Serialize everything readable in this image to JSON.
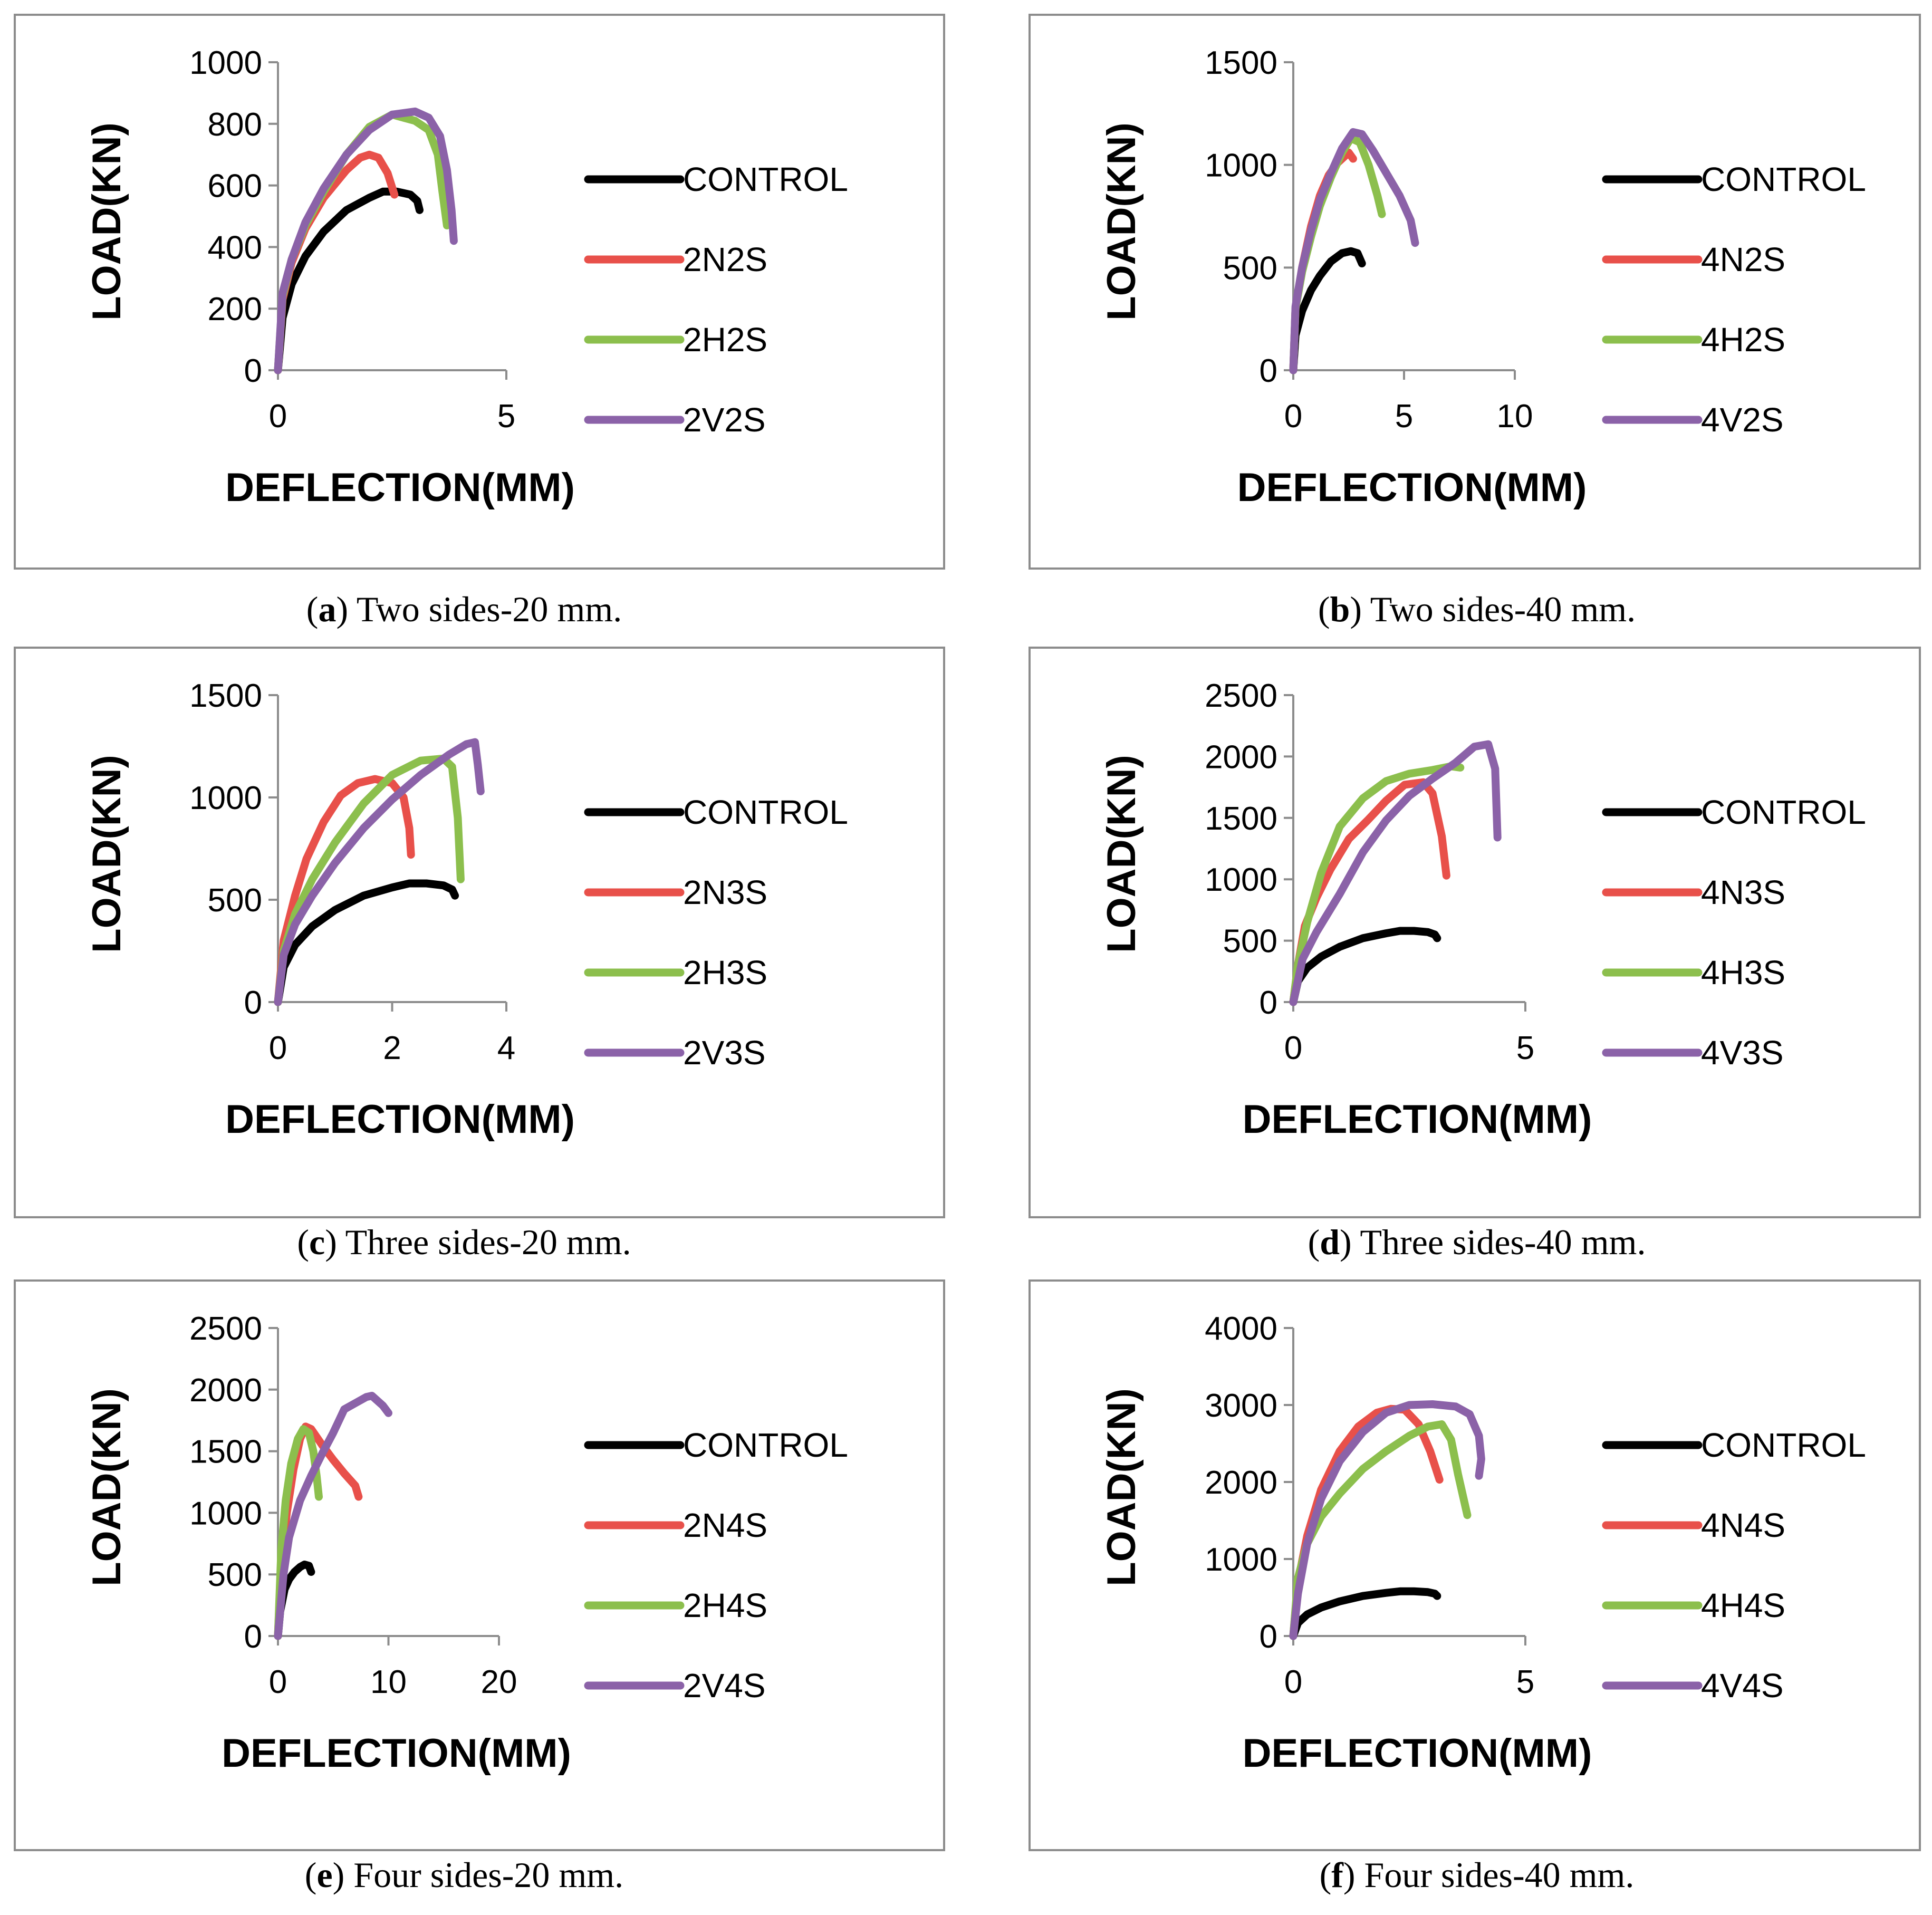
{
  "figure": {
    "x_label": "DEFLECTION(MM)",
    "y_label": "LOAD(KN)"
  },
  "colors": {
    "CONTROL": "#000000",
    "N": "#e8504a",
    "H": "#8cbf4d",
    "V": "#8b62a8"
  },
  "chart_data": [
    {
      "type": "line",
      "panel_letter": "a",
      "caption": "Two sides-20 mm.",
      "xlabel": "DEFLECTION(MM)",
      "ylabel": "LOAD(KN)",
      "xlim": [
        0,
        5
      ],
      "ylim": [
        0,
        1000
      ],
      "xticks": [
        0,
        5
      ],
      "yticks": [
        0,
        200,
        400,
        600,
        800,
        1000
      ],
      "legend_position": "right",
      "series": [
        {
          "name": "CONTROL",
          "color_key": "CONTROL",
          "x": [
            0,
            0.1,
            0.3,
            0.6,
            1.0,
            1.5,
            2.0,
            2.3,
            2.6,
            2.9,
            3.05,
            3.1
          ],
          "y": [
            0,
            170,
            280,
            370,
            450,
            520,
            560,
            580,
            580,
            570,
            550,
            520
          ]
        },
        {
          "name": "2N2S",
          "color_key": "N",
          "x": [
            0,
            0.1,
            0.3,
            0.6,
            1.0,
            1.5,
            1.8,
            2.0,
            2.2,
            2.4,
            2.55
          ],
          "y": [
            0,
            230,
            350,
            460,
            560,
            650,
            690,
            700,
            690,
            640,
            570
          ]
        },
        {
          "name": "2H2S",
          "color_key": "H",
          "x": [
            0,
            0.1,
            0.3,
            0.6,
            1.0,
            1.5,
            2.0,
            2.5,
            3.0,
            3.3,
            3.5,
            3.6,
            3.7
          ],
          "y": [
            0,
            240,
            360,
            470,
            580,
            700,
            790,
            830,
            810,
            780,
            700,
            580,
            470
          ]
        },
        {
          "name": "2V2S",
          "color_key": "V",
          "x": [
            0,
            0.1,
            0.3,
            0.6,
            1.0,
            1.5,
            2.0,
            2.5,
            3.0,
            3.3,
            3.55,
            3.7,
            3.8,
            3.85
          ],
          "y": [
            0,
            250,
            360,
            480,
            590,
            700,
            780,
            830,
            840,
            820,
            760,
            650,
            520,
            420
          ]
        }
      ]
    },
    {
      "type": "line",
      "panel_letter": "b",
      "caption": "Two sides-40 mm.",
      "xlabel": "DEFLECTION(MM)",
      "ylabel": "LOAD(KN)",
      "xlim": [
        0,
        10
      ],
      "ylim": [
        0,
        1500
      ],
      "xticks": [
        0,
        5,
        10
      ],
      "yticks": [
        0,
        500,
        1000,
        1500
      ],
      "legend_position": "right",
      "series": [
        {
          "name": "CONTROL",
          "color_key": "CONTROL",
          "x": [
            0,
            0.1,
            0.4,
            0.8,
            1.2,
            1.7,
            2.2,
            2.6,
            2.9,
            3.1
          ],
          "y": [
            0,
            170,
            290,
            390,
            460,
            530,
            570,
            580,
            570,
            520
          ]
        },
        {
          "name": "4N2S",
          "color_key": "N",
          "x": [
            0,
            0.1,
            0.4,
            0.8,
            1.2,
            1.6,
            2.0,
            2.3,
            2.5,
            2.7
          ],
          "y": [
            0,
            300,
            500,
            700,
            850,
            950,
            1010,
            1040,
            1060,
            1030
          ]
        },
        {
          "name": "4H2S",
          "color_key": "H",
          "x": [
            0,
            0.1,
            0.4,
            0.8,
            1.2,
            1.7,
            2.2,
            2.6,
            3.0,
            3.4,
            3.8,
            4.0
          ],
          "y": [
            0,
            300,
            480,
            650,
            800,
            940,
            1060,
            1130,
            1110,
            1000,
            850,
            760
          ]
        },
        {
          "name": "4V2S",
          "color_key": "V",
          "x": [
            0,
            0.1,
            0.4,
            0.8,
            1.2,
            1.7,
            2.2,
            2.7,
            3.1,
            3.6,
            4.2,
            4.8,
            5.3,
            5.5
          ],
          "y": [
            0,
            310,
            500,
            680,
            830,
            960,
            1080,
            1160,
            1150,
            1070,
            960,
            850,
            730,
            620
          ]
        }
      ]
    },
    {
      "type": "line",
      "panel_letter": "c",
      "caption": "Three sides-20 mm.",
      "xlabel": "DEFLECTION(MM)",
      "ylabel": "LOAD(KN)",
      "xlim": [
        0,
        4
      ],
      "ylim": [
        0,
        1500
      ],
      "xticks": [
        0,
        2,
        4
      ],
      "yticks": [
        0,
        500,
        1000,
        1500
      ],
      "legend_position": "right",
      "series": [
        {
          "name": "CONTROL",
          "color_key": "CONTROL",
          "x": [
            0,
            0.1,
            0.3,
            0.6,
            1.0,
            1.5,
            2.0,
            2.3,
            2.6,
            2.9,
            3.05,
            3.1
          ],
          "y": [
            0,
            170,
            280,
            370,
            450,
            520,
            560,
            580,
            580,
            570,
            550,
            520
          ]
        },
        {
          "name": "2N3S",
          "color_key": "N",
          "x": [
            0,
            0.1,
            0.3,
            0.5,
            0.8,
            1.1,
            1.4,
            1.7,
            2.0,
            2.2,
            2.3,
            2.33
          ],
          "y": [
            0,
            300,
            520,
            700,
            880,
            1010,
            1070,
            1090,
            1070,
            1000,
            850,
            720
          ]
        },
        {
          "name": "2H3S",
          "color_key": "H",
          "x": [
            0,
            0.1,
            0.3,
            0.6,
            1.0,
            1.5,
            2.0,
            2.5,
            2.9,
            3.05,
            3.15,
            3.2
          ],
          "y": [
            0,
            250,
            430,
            600,
            780,
            970,
            1110,
            1180,
            1190,
            1150,
            900,
            600
          ]
        },
        {
          "name": "2V3S",
          "color_key": "V",
          "x": [
            0,
            0.1,
            0.3,
            0.6,
            1.0,
            1.5,
            2.0,
            2.5,
            3.0,
            3.3,
            3.45,
            3.5,
            3.55
          ],
          "y": [
            0,
            230,
            380,
            520,
            680,
            850,
            990,
            1110,
            1210,
            1260,
            1270,
            1160,
            1030
          ]
        }
      ]
    },
    {
      "type": "line",
      "panel_letter": "d",
      "caption": "Three sides-40 mm.",
      "xlabel": "DEFLECTION(MM)",
      "ylabel": "LOAD(KN)",
      "xlim": [
        0,
        5
      ],
      "ylim": [
        0,
        2500
      ],
      "xticks": [
        0,
        5
      ],
      "yticks": [
        0,
        500,
        1000,
        1500,
        2000,
        2500
      ],
      "legend_position": "right",
      "series": [
        {
          "name": "CONTROL",
          "color_key": "CONTROL",
          "x": [
            0,
            0.1,
            0.3,
            0.6,
            1.0,
            1.5,
            2.0,
            2.3,
            2.6,
            2.9,
            3.05,
            3.1
          ],
          "y": [
            0,
            170,
            280,
            370,
            450,
            520,
            560,
            580,
            580,
            570,
            550,
            520
          ]
        },
        {
          "name": "4N3S",
          "color_key": "N",
          "x": [
            0,
            0.1,
            0.25,
            0.5,
            0.8,
            1.2,
            1.6,
            2.0,
            2.4,
            2.8,
            3.0,
            3.2,
            3.3
          ],
          "y": [
            0,
            300,
            620,
            850,
            1080,
            1330,
            1480,
            1640,
            1770,
            1790,
            1700,
            1350,
            1030
          ]
        },
        {
          "name": "4H3S",
          "color_key": "H",
          "x": [
            0,
            0.1,
            0.3,
            0.6,
            1.0,
            1.5,
            2.0,
            2.5,
            3.0,
            3.4,
            3.6
          ],
          "y": [
            0,
            300,
            650,
            1050,
            1430,
            1660,
            1800,
            1860,
            1890,
            1920,
            1910
          ]
        },
        {
          "name": "4V3S",
          "color_key": "V",
          "x": [
            0,
            0.2,
            0.5,
            1.0,
            1.5,
            2.0,
            2.5,
            3.0,
            3.5,
            3.9,
            4.2,
            4.35,
            4.4
          ],
          "y": [
            0,
            350,
            570,
            880,
            1220,
            1480,
            1680,
            1820,
            1950,
            2080,
            2100,
            1900,
            1340
          ]
        }
      ]
    },
    {
      "type": "line",
      "panel_letter": "e",
      "caption": "Four sides-20 mm.",
      "xlabel": "DEFLECTION(MM)",
      "ylabel": "LOAD(KN)",
      "xlim": [
        0,
        20
      ],
      "ylim": [
        0,
        2500
      ],
      "xticks": [
        0,
        10,
        20
      ],
      "yticks": [
        0,
        500,
        1000,
        1500,
        2000,
        2500
      ],
      "legend_position": "right",
      "series": [
        {
          "name": "CONTROL",
          "color_key": "CONTROL",
          "x": [
            0,
            0.2,
            0.6,
            1.0,
            1.5,
            2.0,
            2.4,
            2.8,
            3.0
          ],
          "y": [
            0,
            200,
            380,
            460,
            520,
            560,
            580,
            570,
            520
          ]
        },
        {
          "name": "2N4S",
          "color_key": "N",
          "x": [
            0,
            0.3,
            0.8,
            1.4,
            2.0,
            2.5,
            3.0,
            4.0,
            5.0,
            6.0,
            7.0,
            7.3
          ],
          "y": [
            0,
            600,
            1000,
            1350,
            1600,
            1700,
            1680,
            1550,
            1430,
            1320,
            1220,
            1130
          ]
        },
        {
          "name": "2H4S",
          "color_key": "H",
          "x": [
            0,
            0.3,
            0.7,
            1.2,
            1.8,
            2.3,
            2.8,
            3.2,
            3.5,
            3.7
          ],
          "y": [
            0,
            700,
            1100,
            1400,
            1600,
            1680,
            1650,
            1500,
            1300,
            1130
          ]
        },
        {
          "name": "2V4S",
          "color_key": "V",
          "x": [
            0,
            0.5,
            1.0,
            2.0,
            3.0,
            4.0,
            5.0,
            6.0,
            7.0,
            8.0,
            8.5,
            9.5,
            10.0
          ],
          "y": [
            0,
            500,
            800,
            1100,
            1300,
            1480,
            1650,
            1840,
            1890,
            1940,
            1950,
            1870,
            1810
          ]
        }
      ]
    },
    {
      "type": "line",
      "panel_letter": "f",
      "caption": "Four sides-40 mm.",
      "xlabel": "DEFLECTION(MM)",
      "ylabel": "LOAD(KN)",
      "xlim": [
        0,
        5
      ],
      "ylim": [
        0,
        4000
      ],
      "xticks": [
        0,
        5
      ],
      "yticks": [
        0,
        1000,
        2000,
        3000,
        4000
      ],
      "legend_position": "right",
      "series": [
        {
          "name": "CONTROL",
          "color_key": "CONTROL",
          "x": [
            0,
            0.1,
            0.3,
            0.6,
            1.0,
            1.5,
            2.0,
            2.3,
            2.6,
            2.9,
            3.05,
            3.1
          ],
          "y": [
            0,
            170,
            280,
            370,
            450,
            520,
            560,
            580,
            580,
            570,
            550,
            520
          ]
        },
        {
          "name": "4N4S",
          "color_key": "N",
          "x": [
            0,
            0.1,
            0.3,
            0.6,
            1.0,
            1.4,
            1.8,
            2.1,
            2.4,
            2.7,
            2.95,
            3.15
          ],
          "y": [
            0,
            700,
            1300,
            1900,
            2400,
            2720,
            2900,
            2950,
            2940,
            2750,
            2400,
            2030
          ]
        },
        {
          "name": "4H4S",
          "color_key": "H",
          "x": [
            0,
            0.1,
            0.3,
            0.6,
            1.0,
            1.5,
            2.0,
            2.5,
            2.9,
            3.2,
            3.4,
            3.55,
            3.75
          ],
          "y": [
            0,
            750,
            1200,
            1550,
            1850,
            2170,
            2400,
            2600,
            2720,
            2750,
            2550,
            2100,
            1570
          ]
        },
        {
          "name": "4V4S",
          "color_key": "V",
          "x": [
            0,
            0.1,
            0.3,
            0.6,
            1.0,
            1.5,
            2.0,
            2.5,
            3.0,
            3.5,
            3.8,
            4.0,
            4.05,
            4.0
          ],
          "y": [
            0,
            550,
            1200,
            1780,
            2270,
            2650,
            2900,
            3000,
            3010,
            2980,
            2880,
            2600,
            2300,
            2080
          ]
        }
      ]
    }
  ]
}
